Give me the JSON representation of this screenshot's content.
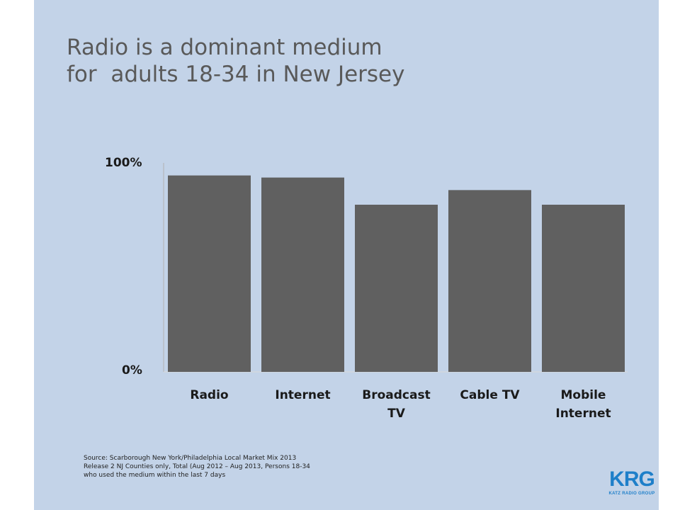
{
  "slide": {
    "title_lines": [
      "Radio is a dominant medium",
      "for  adults 18-34 in New Jersey"
    ],
    "source_lines": [
      "Source:  Scarborough New York/Philadelphia Local Market Mix 2013",
      "Release 2 NJ Counties only, Total (Aug 2012 – Aug 2013, Persons 18-34",
      "who used the medium within the last 7 days"
    ],
    "logo": {
      "letters": "KRG",
      "subtitle": "KATZ RADIO GROUP",
      "color": "#1e7fc9"
    }
  },
  "chart_data": {
    "type": "bar",
    "title": "",
    "xlabel": "",
    "ylabel": "",
    "categories": [
      [
        "Radio"
      ],
      [
        "Internet"
      ],
      [
        "Broadcast",
        "TV"
      ],
      [
        "Cable TV"
      ],
      [
        "Mobile",
        "Internet"
      ]
    ],
    "values": [
      94,
      93,
      80,
      87,
      80
    ],
    "ylim": [
      0,
      100
    ],
    "ytick_labels": [
      "0%",
      "100%"
    ],
    "bar_color": "#606060",
    "grid": false,
    "legend": "none"
  }
}
